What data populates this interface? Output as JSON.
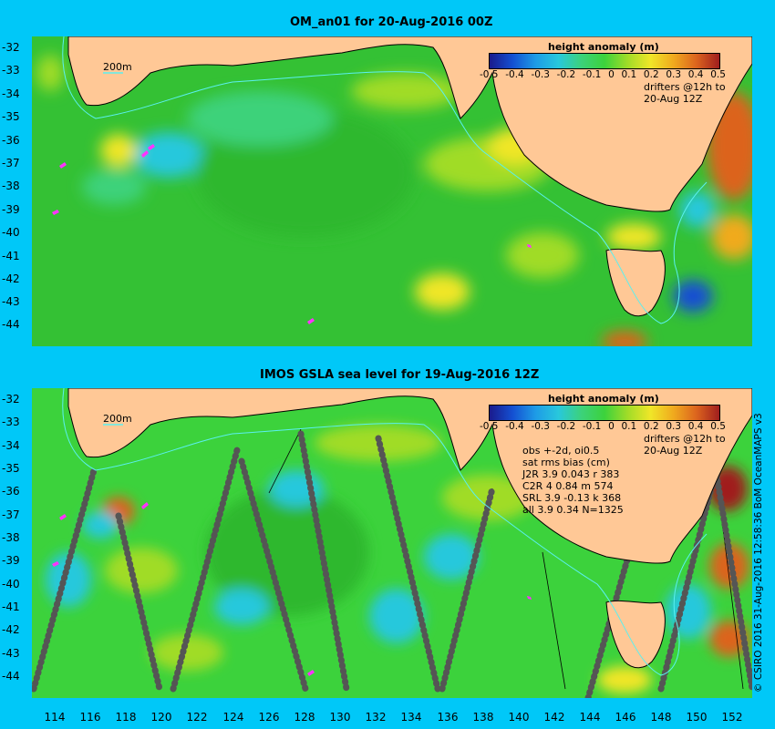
{
  "top_panel": {
    "title": "OM_an01 for 20-Aug-2016 00Z",
    "isobath_label": "200m",
    "colorbar_title": "height anomaly (m)",
    "colorbar_ticks": [
      "-0.5",
      "-0.4",
      "-0.3",
      "-0.2",
      "-0.1",
      "0",
      "0.1",
      "0.2",
      "0.3",
      "0.4",
      "0.5"
    ],
    "drifters_line1": "drifters @12h to",
    "drifters_line2": "20-Aug 12Z"
  },
  "bottom_panel": {
    "title": "IMOS GSLA sea level  for 19-Aug-2016 12Z",
    "isobath_label": "200m",
    "colorbar_title": "height anomaly (m)",
    "colorbar_ticks": [
      "-0.5",
      "-0.4",
      "-0.3",
      "-0.2",
      "-0.1",
      "0",
      "0.1",
      "0.2",
      "0.3",
      "0.4",
      "0.5"
    ],
    "drifters_line1": "drifters @12h to",
    "drifters_line2": "20-Aug 12Z",
    "stats_lines": [
      "obs +-2d, oi0.5",
      "sat rms bias (cm)",
      "J2R   3.9 0.043 r 383",
      "C2R   4 0.84 m 574",
      "SRL   3.9 -0.13 k 368",
      "all   3.9 0.34 N=1325"
    ]
  },
  "lat_labels": [
    "-32",
    "-33",
    "-34",
    "-35",
    "-36",
    "-37",
    "-38",
    "-39",
    "-40",
    "-41",
    "-42",
    "-43",
    "-44"
  ],
  "lon_labels": [
    "114",
    "116",
    "118",
    "120",
    "122",
    "124",
    "126",
    "128",
    "130",
    "132",
    "134",
    "136",
    "138",
    "140",
    "142",
    "144",
    "146",
    "148",
    "150",
    "152"
  ],
  "credit": "© CSIRO 2016  31-Aug-2016 12:58:36 BoM OceanMAPS v3",
  "colors": {
    "background": "#00c8f8",
    "land": "#ffc896",
    "ocean_base": "#2ec82e",
    "colormap": [
      "#1a1a8c",
      "#1450d2",
      "#1e9be6",
      "#28c8dc",
      "#3cd27a",
      "#3cd23c",
      "#a0dc28",
      "#f0e628",
      "#f0aa1e",
      "#dc641e",
      "#a01e1e"
    ],
    "isobath": "#5af0f0",
    "drifter": "#ff32ff"
  }
}
